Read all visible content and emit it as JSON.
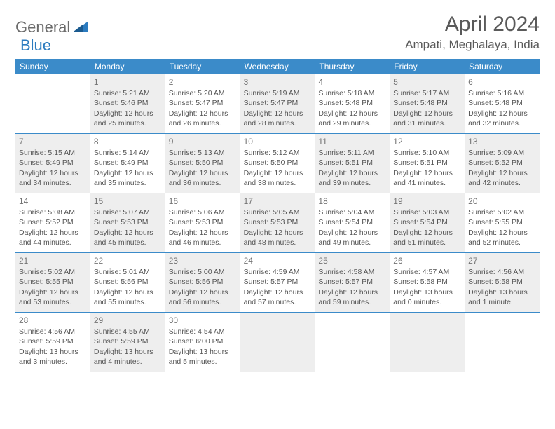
{
  "logo": {
    "part1": "General",
    "part2": "Blue"
  },
  "title": "April 2024",
  "location": "Ampati, Meghalaya, India",
  "header_bg": "#3b8bc9",
  "header_text_color": "#ffffff",
  "cell_text_color": "#555555",
  "shaded_bg": "#eeeeee",
  "border_color": "#3b8bc9",
  "weekdays": [
    "Sunday",
    "Monday",
    "Tuesday",
    "Wednesday",
    "Thursday",
    "Friday",
    "Saturday"
  ],
  "weeks": [
    [
      {
        "num": "",
        "shaded": false,
        "lines": []
      },
      {
        "num": "1",
        "shaded": true,
        "lines": [
          "Sunrise: 5:21 AM",
          "Sunset: 5:46 PM",
          "Daylight: 12 hours and 25 minutes."
        ]
      },
      {
        "num": "2",
        "shaded": false,
        "lines": [
          "Sunrise: 5:20 AM",
          "Sunset: 5:47 PM",
          "Daylight: 12 hours and 26 minutes."
        ]
      },
      {
        "num": "3",
        "shaded": true,
        "lines": [
          "Sunrise: 5:19 AM",
          "Sunset: 5:47 PM",
          "Daylight: 12 hours and 28 minutes."
        ]
      },
      {
        "num": "4",
        "shaded": false,
        "lines": [
          "Sunrise: 5:18 AM",
          "Sunset: 5:48 PM",
          "Daylight: 12 hours and 29 minutes."
        ]
      },
      {
        "num": "5",
        "shaded": true,
        "lines": [
          "Sunrise: 5:17 AM",
          "Sunset: 5:48 PM",
          "Daylight: 12 hours and 31 minutes."
        ]
      },
      {
        "num": "6",
        "shaded": false,
        "lines": [
          "Sunrise: 5:16 AM",
          "Sunset: 5:48 PM",
          "Daylight: 12 hours and 32 minutes."
        ]
      }
    ],
    [
      {
        "num": "7",
        "shaded": true,
        "lines": [
          "Sunrise: 5:15 AM",
          "Sunset: 5:49 PM",
          "Daylight: 12 hours and 34 minutes."
        ]
      },
      {
        "num": "8",
        "shaded": false,
        "lines": [
          "Sunrise: 5:14 AM",
          "Sunset: 5:49 PM",
          "Daylight: 12 hours and 35 minutes."
        ]
      },
      {
        "num": "9",
        "shaded": true,
        "lines": [
          "Sunrise: 5:13 AM",
          "Sunset: 5:50 PM",
          "Daylight: 12 hours and 36 minutes."
        ]
      },
      {
        "num": "10",
        "shaded": false,
        "lines": [
          "Sunrise: 5:12 AM",
          "Sunset: 5:50 PM",
          "Daylight: 12 hours and 38 minutes."
        ]
      },
      {
        "num": "11",
        "shaded": true,
        "lines": [
          "Sunrise: 5:11 AM",
          "Sunset: 5:51 PM",
          "Daylight: 12 hours and 39 minutes."
        ]
      },
      {
        "num": "12",
        "shaded": false,
        "lines": [
          "Sunrise: 5:10 AM",
          "Sunset: 5:51 PM",
          "Daylight: 12 hours and 41 minutes."
        ]
      },
      {
        "num": "13",
        "shaded": true,
        "lines": [
          "Sunrise: 5:09 AM",
          "Sunset: 5:52 PM",
          "Daylight: 12 hours and 42 minutes."
        ]
      }
    ],
    [
      {
        "num": "14",
        "shaded": false,
        "lines": [
          "Sunrise: 5:08 AM",
          "Sunset: 5:52 PM",
          "Daylight: 12 hours and 44 minutes."
        ]
      },
      {
        "num": "15",
        "shaded": true,
        "lines": [
          "Sunrise: 5:07 AM",
          "Sunset: 5:53 PM",
          "Daylight: 12 hours and 45 minutes."
        ]
      },
      {
        "num": "16",
        "shaded": false,
        "lines": [
          "Sunrise: 5:06 AM",
          "Sunset: 5:53 PM",
          "Daylight: 12 hours and 46 minutes."
        ]
      },
      {
        "num": "17",
        "shaded": true,
        "lines": [
          "Sunrise: 5:05 AM",
          "Sunset: 5:53 PM",
          "Daylight: 12 hours and 48 minutes."
        ]
      },
      {
        "num": "18",
        "shaded": false,
        "lines": [
          "Sunrise: 5:04 AM",
          "Sunset: 5:54 PM",
          "Daylight: 12 hours and 49 minutes."
        ]
      },
      {
        "num": "19",
        "shaded": true,
        "lines": [
          "Sunrise: 5:03 AM",
          "Sunset: 5:54 PM",
          "Daylight: 12 hours and 51 minutes."
        ]
      },
      {
        "num": "20",
        "shaded": false,
        "lines": [
          "Sunrise: 5:02 AM",
          "Sunset: 5:55 PM",
          "Daylight: 12 hours and 52 minutes."
        ]
      }
    ],
    [
      {
        "num": "21",
        "shaded": true,
        "lines": [
          "Sunrise: 5:02 AM",
          "Sunset: 5:55 PM",
          "Daylight: 12 hours and 53 minutes."
        ]
      },
      {
        "num": "22",
        "shaded": false,
        "lines": [
          "Sunrise: 5:01 AM",
          "Sunset: 5:56 PM",
          "Daylight: 12 hours and 55 minutes."
        ]
      },
      {
        "num": "23",
        "shaded": true,
        "lines": [
          "Sunrise: 5:00 AM",
          "Sunset: 5:56 PM",
          "Daylight: 12 hours and 56 minutes."
        ]
      },
      {
        "num": "24",
        "shaded": false,
        "lines": [
          "Sunrise: 4:59 AM",
          "Sunset: 5:57 PM",
          "Daylight: 12 hours and 57 minutes."
        ]
      },
      {
        "num": "25",
        "shaded": true,
        "lines": [
          "Sunrise: 4:58 AM",
          "Sunset: 5:57 PM",
          "Daylight: 12 hours and 59 minutes."
        ]
      },
      {
        "num": "26",
        "shaded": false,
        "lines": [
          "Sunrise: 4:57 AM",
          "Sunset: 5:58 PM",
          "Daylight: 13 hours and 0 minutes."
        ]
      },
      {
        "num": "27",
        "shaded": true,
        "lines": [
          "Sunrise: 4:56 AM",
          "Sunset: 5:58 PM",
          "Daylight: 13 hours and 1 minute."
        ]
      }
    ],
    [
      {
        "num": "28",
        "shaded": false,
        "lines": [
          "Sunrise: 4:56 AM",
          "Sunset: 5:59 PM",
          "Daylight: 13 hours and 3 minutes."
        ]
      },
      {
        "num": "29",
        "shaded": true,
        "lines": [
          "Sunrise: 4:55 AM",
          "Sunset: 5:59 PM",
          "Daylight: 13 hours and 4 minutes."
        ]
      },
      {
        "num": "30",
        "shaded": false,
        "lines": [
          "Sunrise: 4:54 AM",
          "Sunset: 6:00 PM",
          "Daylight: 13 hours and 5 minutes."
        ]
      },
      {
        "num": "",
        "shaded": true,
        "lines": []
      },
      {
        "num": "",
        "shaded": false,
        "lines": []
      },
      {
        "num": "",
        "shaded": true,
        "lines": []
      },
      {
        "num": "",
        "shaded": false,
        "lines": []
      }
    ]
  ]
}
